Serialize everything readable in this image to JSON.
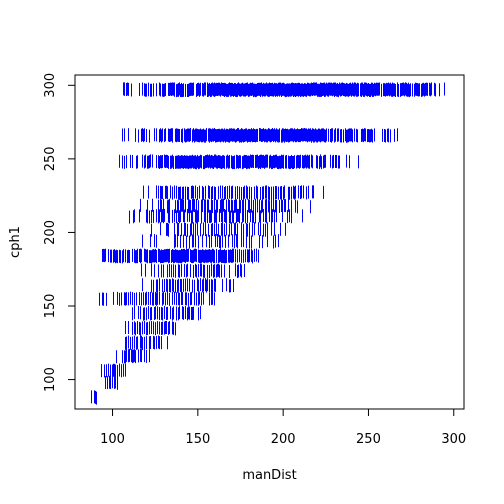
{
  "chart_data": {
    "type": "scatter",
    "marker": "vertical-tick",
    "title": "",
    "xlabel": "manDist",
    "ylabel": "cph1",
    "xlim": [
      78,
      306
    ],
    "ylim": [
      80,
      307
    ],
    "xticks": [
      100,
      150,
      200,
      250,
      300
    ],
    "yticks": [
      100,
      150,
      200,
      250,
      300
    ],
    "xtick_labels": [
      "100",
      "150",
      "200",
      "250",
      "300"
    ],
    "ytick_labels": [
      "100",
      "150",
      "200",
      "250",
      "300"
    ],
    "grid": false,
    "color": "#0000ff",
    "bands": [
      {
        "y": 297,
        "x_from": 104,
        "x_to": 300,
        "density": 1.0
      },
      {
        "y": 266,
        "x_from": 100,
        "x_to": 268,
        "density": 0.85
      },
      {
        "y": 248,
        "x_from": 101,
        "x_to": 246,
        "density": 0.8
      },
      {
        "y": 227,
        "x_from": 118,
        "x_to": 226,
        "density": 0.45
      },
      {
        "y": 218,
        "x_from": 116,
        "x_to": 217,
        "density": 0.45
      },
      {
        "y": 211,
        "x_from": 108,
        "x_to": 213,
        "density": 0.4
      },
      {
        "y": 202,
        "x_from": 120,
        "x_to": 207,
        "density": 0.35
      },
      {
        "y": 194,
        "x_from": 115,
        "x_to": 198,
        "density": 0.3
      },
      {
        "y": 184,
        "x_from": 91,
        "x_to": 189,
        "density": 0.85
      },
      {
        "y": 174,
        "x_from": 113,
        "x_to": 180,
        "density": 0.4
      },
      {
        "y": 164,
        "x_from": 116,
        "x_to": 171,
        "density": 0.45
      },
      {
        "y": 155,
        "x_from": 87,
        "x_to": 162,
        "density": 0.45
      },
      {
        "y": 145,
        "x_from": 110,
        "x_to": 152,
        "density": 0.45
      },
      {
        "y": 135,
        "x_from": 104,
        "x_to": 142,
        "density": 0.45
      },
      {
        "y": 125,
        "x_from": 103,
        "x_to": 132,
        "density": 0.45
      },
      {
        "y": 116,
        "x_from": 100,
        "x_to": 122,
        "density": 0.45
      },
      {
        "y": 106,
        "x_from": 93,
        "x_to": 112,
        "density": 0.45
      },
      {
        "y": 98,
        "x_from": 95,
        "x_to": 103,
        "density": 0.5
      },
      {
        "y": 88,
        "x_from": 86,
        "x_to": 92,
        "density": 0.5
      }
    ]
  }
}
